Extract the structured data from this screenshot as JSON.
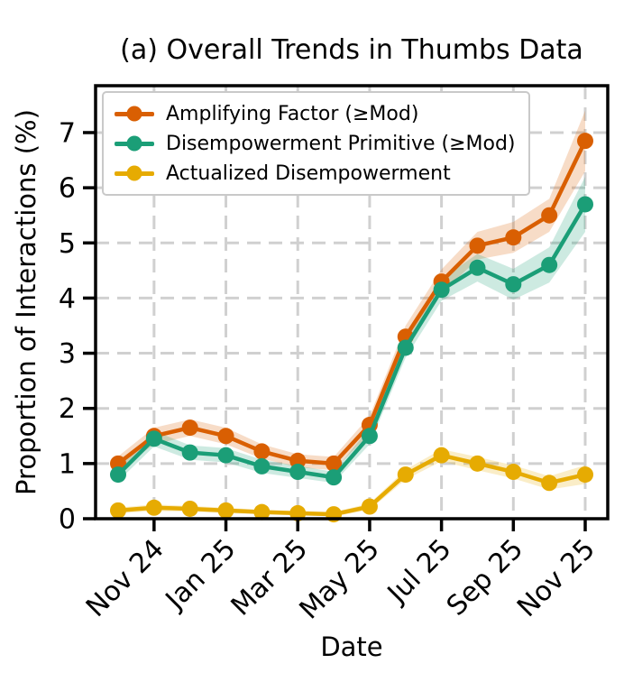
{
  "chart_data": {
    "type": "line",
    "title": "(a) Overall Trends in Thumbs Data",
    "xlabel": "Date",
    "ylabel": "Proportion of Interactions (%)",
    "x": [
      "Oct 24",
      "Nov 24",
      "Dec 24",
      "Jan 25",
      "Feb 25",
      "Mar 25",
      "Apr 25",
      "May 25",
      "Jun 25",
      "Jul 25",
      "Aug 25",
      "Sep 25",
      "Oct 25",
      "Nov 25"
    ],
    "x_tick_indices": [
      1,
      3,
      5,
      7,
      9,
      11,
      13
    ],
    "x_tick_labels": [
      "Nov 24",
      "Jan 25",
      "Mar 25",
      "May 25",
      "Jul 25",
      "Sep 25",
      "Nov 25"
    ],
    "y_ticks": [
      0,
      1,
      2,
      3,
      4,
      5,
      6,
      7
    ],
    "ylim": [
      0,
      7.85
    ],
    "grid": true,
    "grid_color": "#d0d0d0",
    "legend_position": "upper left",
    "series": [
      {
        "key": "amplifying-factor",
        "name": "Amplifying Factor (≥Mod)",
        "color": "#d95f02",
        "values": [
          1.0,
          1.5,
          1.65,
          1.5,
          1.22,
          1.05,
          1.0,
          1.7,
          3.3,
          4.3,
          4.95,
          5.1,
          5.5,
          6.85
        ],
        "ci_half_width": [
          0.13,
          0.15,
          0.15,
          0.15,
          0.13,
          0.12,
          0.12,
          0.16,
          0.2,
          0.22,
          0.25,
          0.28,
          0.3,
          0.55
        ]
      },
      {
        "key": "disempowerment-primitive",
        "name": "Disempowerment Primitive (≥Mod)",
        "color": "#1b9e77",
        "values": [
          0.8,
          1.45,
          1.2,
          1.15,
          0.95,
          0.85,
          0.75,
          1.5,
          3.1,
          4.15,
          4.55,
          4.25,
          4.6,
          5.7
        ],
        "ci_half_width": [
          0.12,
          0.14,
          0.13,
          0.13,
          0.12,
          0.11,
          0.1,
          0.15,
          0.18,
          0.2,
          0.25,
          0.28,
          0.32,
          0.5
        ]
      },
      {
        "key": "actualized-disempowerment",
        "name": "Actualized Disempowerment",
        "color": "#e6ab02",
        "values": [
          0.15,
          0.2,
          0.18,
          0.15,
          0.12,
          0.1,
          0.08,
          0.22,
          0.8,
          1.15,
          1.0,
          0.85,
          0.65,
          0.8
        ],
        "ci_half_width": [
          0.05,
          0.06,
          0.05,
          0.05,
          0.04,
          0.04,
          0.04,
          0.06,
          0.09,
          0.11,
          0.12,
          0.12,
          0.12,
          0.17
        ]
      }
    ]
  }
}
